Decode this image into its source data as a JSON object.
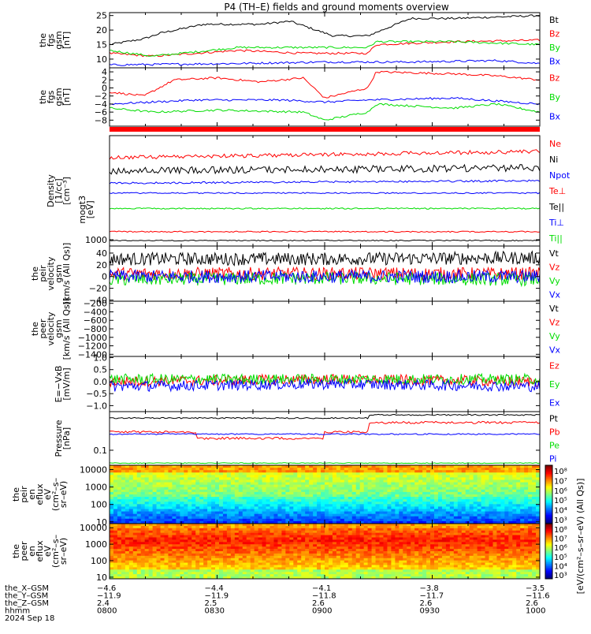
{
  "title": "P4 (TH–E) fields and ground moments overview",
  "colors": {
    "black": "#000000",
    "red": "#ff0000",
    "green": "#00dd00",
    "blue": "#0000ff"
  },
  "panels": [
    {
      "id": "fgs_gsm",
      "ylabel": [
        "the",
        "fgs",
        "gsm",
        "[nT]"
      ],
      "ylim": [
        7,
        26
      ],
      "ticks": [
        "25",
        "20",
        "15",
        "10"
      ],
      "tickvals": [
        25,
        20,
        15,
        10
      ],
      "legend": [
        {
          "label": "Bt",
          "color": "#000000"
        },
        {
          "label": "Bz",
          "color": "#ff0000"
        },
        {
          "label": "By",
          "color": "#00dd00"
        },
        {
          "label": "Bx",
          "color": "#0000ff"
        }
      ]
    },
    {
      "id": "fgs_gsm_comp",
      "ylabel": [
        "the",
        "fgs",
        "gsm",
        "[nT]"
      ],
      "ylim": [
        -9.5,
        5
      ],
      "ticks": [
        "4",
        "2",
        "0",
        "−2",
        "−4",
        "−6",
        "−8"
      ],
      "tickvals": [
        4,
        2,
        0,
        -2,
        -4,
        -6,
        -8
      ],
      "legend": [
        {
          "label": "Bz",
          "color": "#ff0000"
        },
        {
          "label": "By",
          "color": "#00dd00"
        },
        {
          "label": "Bx",
          "color": "#0000ff"
        }
      ]
    },
    {
      "id": "moments",
      "ylabel": [
        "Density",
        "[1/cc]",
        "[cm⁻³]"
      ],
      "ylabel2": [
        "mogt3",
        "[eV]"
      ],
      "ticks": [
        "1000"
      ],
      "tickvals": [
        1000
      ],
      "legend": [
        {
          "label": "Ne",
          "color": "#ff0000"
        },
        {
          "label": "Ni",
          "color": "#000000"
        },
        {
          "label": "Npot",
          "color": "#0000ff"
        },
        {
          "label": "Te⊥",
          "color": "#ff0000"
        },
        {
          "label": "Te||",
          "color": "#000000"
        },
        {
          "label": "Ti⊥",
          "color": "#0000ff"
        },
        {
          "label": "Ti||",
          "color": "#00dd00"
        }
      ]
    },
    {
      "id": "peir_velocity",
      "ylabel": [
        "the",
        "peir",
        "velocity",
        "gsm",
        "[km/s (All Qs)]"
      ],
      "ylim": [
        -42,
        52
      ],
      "ticks": [
        "40",
        "20",
        "0",
        "−20",
        "−40"
      ],
      "tickvals": [
        40,
        20,
        0,
        -20,
        -40
      ],
      "legend": [
        {
          "label": "Vt",
          "color": "#000000"
        },
        {
          "label": "Vz",
          "color": "#ff0000"
        },
        {
          "label": "Vy",
          "color": "#00dd00"
        },
        {
          "label": "Vx",
          "color": "#0000ff"
        }
      ]
    },
    {
      "id": "peer_velocity",
      "ylabel": [
        "the",
        "peer",
        "velocity",
        "gsm",
        "[km/s (All Qs)]"
      ],
      "ylim": [
        -1450,
        -150
      ],
      "ticks": [
        "−200",
        "−400",
        "−600",
        "−800",
        "−1000",
        "−1200",
        "−1400"
      ],
      "tickvals": [
        -200,
        -400,
        -600,
        -800,
        -1000,
        -1200,
        -1400
      ],
      "legend": [
        {
          "label": "Vt",
          "color": "#000000"
        },
        {
          "label": "Vz",
          "color": "#ff0000"
        },
        {
          "label": "Vy",
          "color": "#00dd00"
        },
        {
          "label": "Vx",
          "color": "#0000ff"
        }
      ]
    },
    {
      "id": "efield",
      "ylabel": [
        "E=−VxB",
        "[mV/m]"
      ],
      "ylim": [
        -1.25,
        1.05
      ],
      "ticks": [
        "1.0",
        "0.5",
        "0.0",
        "−0.5",
        "−1.0"
      ],
      "tickvals": [
        1.0,
        0.5,
        0.0,
        -0.5,
        -1.0
      ],
      "legend": [
        {
          "label": "Ez",
          "color": "#ff0000"
        },
        {
          "label": "Ey",
          "color": "#00dd00"
        },
        {
          "label": "Ex",
          "color": "#0000ff"
        }
      ]
    },
    {
      "id": "pressure",
      "ylabel": [
        "Pressure",
        "[nPa]"
      ],
      "ticks": [
        "0.1"
      ],
      "tickvals": [
        0.1
      ],
      "legend": [
        {
          "label": "Pt",
          "color": "#000000"
        },
        {
          "label": "Pb",
          "color": "#ff0000"
        },
        {
          "label": "Pe",
          "color": "#00dd00"
        },
        {
          "label": "Pi",
          "color": "#0000ff"
        }
      ]
    },
    {
      "id": "peir_en_eflux",
      "ylabel": [
        "the",
        "peir",
        "en",
        "eflux",
        "eV",
        "(cm²–s–",
        "sr–eV)"
      ],
      "ticks": [
        "10000",
        "1000",
        "100",
        "10"
      ],
      "tickvals": [
        10000,
        1000,
        100,
        10
      ],
      "colorbar_ticks": [
        "10⁸",
        "10⁷",
        "10⁶",
        "10⁵",
        "10⁴",
        "10³"
      ],
      "colorbar_label": "[eV/(cm²–s–sr–eV) (All Qs)]"
    },
    {
      "id": "peer_en_eflux",
      "ylabel": [
        "the",
        "peer",
        "en",
        "eflux",
        "eV",
        "(cm²–s–",
        "sr–eV)"
      ],
      "ticks": [
        "10000",
        "1000",
        "100",
        "10"
      ],
      "tickvals": [
        10000,
        1000,
        100,
        10
      ],
      "colorbar_ticks": [
        "10⁸",
        "10⁷",
        "10⁶",
        "10⁵",
        "10⁴",
        "10³"
      ],
      "colorbar_label": "[eV/(cm²–s–sr–eV) (All Qs)]"
    }
  ],
  "footer": {
    "rows": [
      {
        "label": "the_X–GSM",
        "values": [
          "−4.6",
          "−4.4",
          "−4.1",
          "−3.8",
          "−3.5"
        ]
      },
      {
        "label": "the_Y–GSM",
        "values": [
          "−11.9",
          "−11.9",
          "−11.8",
          "−11.7",
          "−11.6"
        ]
      },
      {
        "label": "the_Z–GSM",
        "values": [
          "2.4",
          "2.5",
          "2.6",
          "2.6",
          "2.6"
        ]
      },
      {
        "label": "hhmm",
        "values": [
          "0800",
          "0830",
          "0900",
          "0930",
          "1000"
        ]
      }
    ],
    "date": "2024 Sep 18"
  },
  "chart_data": {
    "type": "line",
    "title": "P4 (TH–E) fields and ground moments overview",
    "x_ticks": [
      "0800",
      "0830",
      "0900",
      "0930",
      "1000"
    ],
    "series": [
      {
        "panel": "fgs_gsm",
        "name": "Bt",
        "color": "#000000",
        "key_times": [
          0,
          0.08,
          0.12,
          0.22,
          0.35,
          0.42,
          0.52,
          0.6,
          0.7,
          0.8,
          0.9,
          1.0
        ],
        "values": [
          15,
          17,
          19,
          22,
          22,
          23,
          18,
          18,
          24,
          24,
          24.5,
          25
        ]
      },
      {
        "panel": "fgs_gsm",
        "name": "Bz",
        "color": "#ff0000",
        "key_times": [
          0,
          0.1,
          0.3,
          0.45,
          0.6,
          0.62,
          0.8,
          1.0
        ],
        "values": [
          12,
          11,
          13,
          12,
          12,
          15,
          16,
          16.5
        ]
      },
      {
        "panel": "fgs_gsm",
        "name": "By",
        "color": "#00dd00",
        "key_times": [
          0,
          0.1,
          0.3,
          0.45,
          0.6,
          0.62,
          0.8,
          1.0
        ],
        "values": [
          13,
          11,
          14,
          14,
          14,
          16,
          16,
          15
        ]
      },
      {
        "panel": "fgs_gsm",
        "name": "Bx",
        "color": "#0000ff",
        "key_times": [
          0,
          0.3,
          0.5,
          0.7,
          0.9,
          1.0
        ],
        "values": [
          8,
          8.5,
          9,
          9,
          9.5,
          8.5
        ]
      },
      {
        "panel": "fgs_gsm_comp",
        "name": "Bz",
        "color": "#ff0000",
        "key_times": [
          0,
          0.08,
          0.15,
          0.25,
          0.35,
          0.45,
          0.5,
          0.6,
          0.62,
          0.8,
          0.9,
          1.0
        ],
        "values": [
          -1,
          -2,
          2,
          2.5,
          1.5,
          2.5,
          -2.5,
          0,
          4,
          3.5,
          3,
          2
        ]
      },
      {
        "panel": "fgs_gsm_comp",
        "name": "By",
        "color": "#00dd00",
        "key_times": [
          0,
          0.1,
          0.25,
          0.45,
          0.5,
          0.6,
          0.62,
          0.8,
          0.9,
          1.0
        ],
        "values": [
          -5,
          -6,
          -5.5,
          -6,
          -8,
          -6,
          -4,
          -5,
          -4,
          -6
        ]
      },
      {
        "panel": "fgs_gsm_comp",
        "name": "Bx",
        "color": "#0000ff",
        "key_times": [
          0,
          0.2,
          0.4,
          0.5,
          0.6,
          0.8,
          1.0
        ],
        "values": [
          -4,
          -3,
          -3,
          -3.5,
          -3,
          -2.5,
          -4
        ]
      },
      {
        "panel": "peir_velocity",
        "name": "Vt",
        "color": "#000000",
        "key_times": [
          0,
          0.5,
          1.0
        ],
        "values": [
          30,
          30,
          32
        ]
      },
      {
        "panel": "peir_velocity",
        "name": "Vz",
        "color": "#ff0000",
        "key_times": [
          0,
          0.5,
          1.0
        ],
        "values": [
          5,
          5,
          5
        ]
      },
      {
        "panel": "peir_velocity",
        "name": "Vy",
        "color": "#00dd00",
        "key_times": [
          0,
          0.5,
          1.0
        ],
        "values": [
          -5,
          -3,
          -5
        ]
      },
      {
        "panel": "peir_velocity",
        "name": "Vx",
        "color": "#0000ff",
        "key_times": [
          0,
          0.5,
          1.0
        ],
        "values": [
          0,
          0,
          0
        ]
      },
      {
        "panel": "efield",
        "name": "Ez",
        "color": "#ff0000",
        "key_times": [
          0,
          0.5,
          1.0
        ],
        "values": [
          0,
          0.1,
          0
        ]
      },
      {
        "panel": "efield",
        "name": "Ey",
        "color": "#00dd00",
        "key_times": [
          0,
          0.5,
          1.0
        ],
        "values": [
          0.1,
          0.1,
          0.1
        ]
      },
      {
        "panel": "efield",
        "name": "Ex",
        "color": "#0000ff",
        "key_times": [
          0,
          0.5,
          1.0
        ],
        "values": [
          -0.2,
          -0.1,
          -0.2
        ]
      }
    ]
  }
}
